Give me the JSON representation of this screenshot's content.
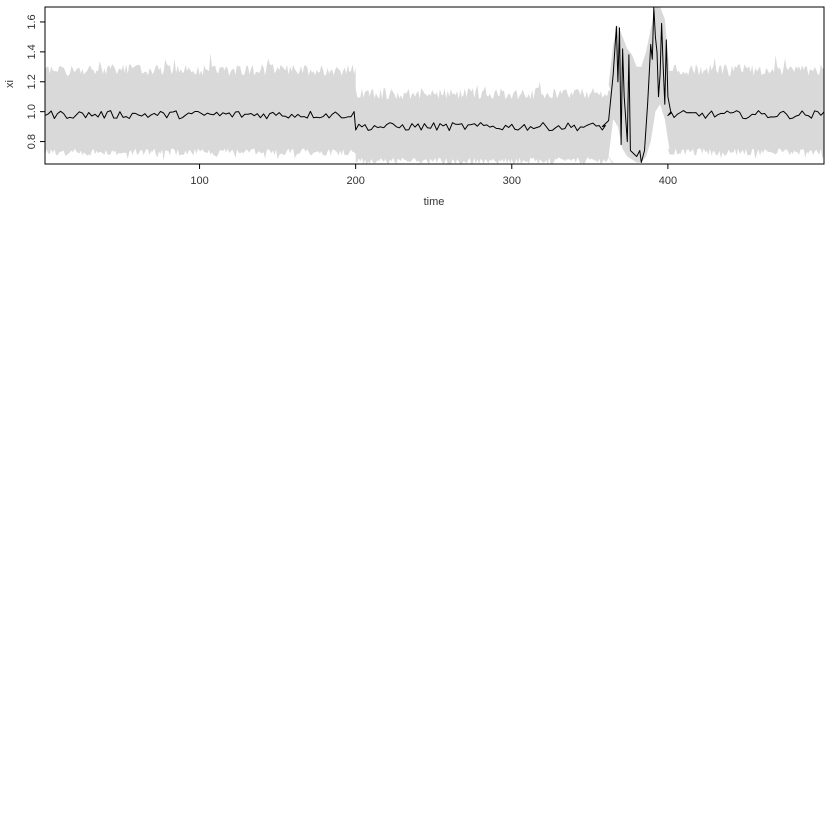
{
  "chart_data": {
    "type": "line",
    "title": "",
    "xlabel": "time",
    "ylabel": "xi",
    "xlim": [
      1,
      500
    ],
    "ylim": [
      0.65,
      1.7
    ],
    "x_ticks": [
      100,
      200,
      300,
      400
    ],
    "x_tick_labels": [
      "100",
      "200",
      "300",
      "400"
    ],
    "y_ticks": [
      0.8,
      1.0,
      1.2,
      1.4,
      1.6
    ],
    "y_tick_labels": [
      "0.8",
      "1.0",
      "1.2",
      "1.4",
      "1.6"
    ],
    "grid": false,
    "legend": "none",
    "band_color": "#d9d9d9",
    "line_color": "#000000",
    "series": [
      {
        "role": "band",
        "segments": [
          {
            "from": 1,
            "to": 200,
            "lower": 0.73,
            "upper": 1.28
          },
          {
            "from": 200,
            "to": 365,
            "lower": 0.67,
            "upper": 1.12
          },
          {
            "from": 400,
            "to": 500,
            "lower": 0.73,
            "upper": 1.28
          }
        ],
        "spike_region": {
          "x": [
            362,
            365,
            368,
            371,
            374,
            377,
            380,
            383,
            386,
            389,
            392,
            395,
            398,
            401
          ],
          "lower": [
            0.7,
            0.95,
            0.9,
            0.75,
            0.7,
            0.68,
            0.66,
            0.66,
            0.7,
            0.8,
            1.0,
            1.05,
            0.95,
            0.75
          ],
          "upper": [
            1.18,
            1.45,
            1.58,
            1.5,
            1.42,
            1.38,
            1.3,
            1.3,
            1.4,
            1.55,
            1.7,
            1.7,
            1.62,
            1.28
          ]
        }
      },
      {
        "role": "line",
        "segments": [
          {
            "from": 1,
            "to": 200,
            "level": 0.98
          },
          {
            "from": 200,
            "to": 360,
            "level": 0.9
          },
          {
            "from": 400,
            "to": 500,
            "level": 0.98
          }
        ],
        "spike_x": [
          358,
          362,
          365,
          367,
          368,
          369,
          370,
          371,
          372,
          374,
          375,
          376,
          378,
          380,
          382,
          383,
          384,
          385,
          387,
          388,
          389,
          390,
          391,
          392,
          393,
          394,
          395,
          396,
          397,
          398,
          399,
          400,
          402
        ],
        "spike_y": [
          0.9,
          0.94,
          1.25,
          1.57,
          1.2,
          1.56,
          0.78,
          1.42,
          1.1,
          0.8,
          1.38,
          0.74,
          0.72,
          0.7,
          0.74,
          0.66,
          0.7,
          0.74,
          1.05,
          1.25,
          1.45,
          1.35,
          1.7,
          1.5,
          1.4,
          1.1,
          1.25,
          1.59,
          1.3,
          1.05,
          1.48,
          1.1,
          0.99
        ]
      }
    ]
  }
}
